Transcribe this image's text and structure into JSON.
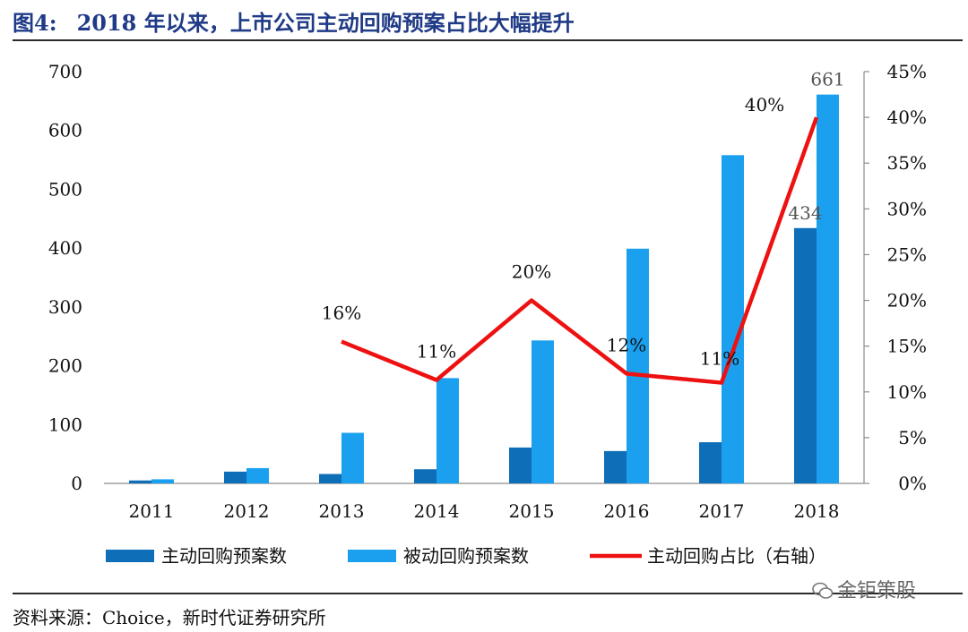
{
  "title": {
    "label": "图4:",
    "text": "2018 年以来，上市公司主动回购预案占比大幅提升"
  },
  "source": "资料来源：Choice，新时代证券研究所",
  "watermark": "金钜策股",
  "colors": {
    "active": "#0e6eb8",
    "passive": "#1aa0ef",
    "ratio": "#ee1111",
    "title": "#1f3a86"
  },
  "chart_data": {
    "type": "bar",
    "categories": [
      "2011",
      "2012",
      "2013",
      "2014",
      "2015",
      "2016",
      "2017",
      "2018"
    ],
    "series": [
      {
        "name": "主动回购预案数",
        "type": "bar",
        "axis": "left",
        "values": [
          5,
          20,
          16,
          24,
          61,
          55,
          70,
          434
        ]
      },
      {
        "name": "被动回购预案数",
        "type": "bar",
        "axis": "left",
        "values": [
          7,
          26,
          86,
          179,
          243,
          399,
          558,
          661
        ]
      },
      {
        "name": "主动回购占比（右轴）",
        "type": "line",
        "axis": "right",
        "values": [
          null,
          null,
          0.155,
          0.113,
          0.2,
          0.12,
          0.11,
          0.4
        ]
      }
    ],
    "bar_labels": [
      {
        "series": 0,
        "index": 7,
        "text": "434"
      },
      {
        "series": 1,
        "index": 7,
        "text": "661"
      }
    ],
    "line_labels": [
      {
        "index": 2,
        "text": "16%"
      },
      {
        "index": 3,
        "text": "11%"
      },
      {
        "index": 4,
        "text": "20%"
      },
      {
        "index": 5,
        "text": "12%"
      },
      {
        "index": 6,
        "text": "11%"
      },
      {
        "index": 7,
        "text": "40%"
      }
    ],
    "y_left": {
      "min": 0,
      "max": 700,
      "ticks": [
        "0",
        "100",
        "200",
        "300",
        "400",
        "500",
        "600",
        "700"
      ]
    },
    "y_right": {
      "min": 0,
      "max": 0.45,
      "ticks": [
        "0%",
        "5%",
        "10%",
        "15%",
        "20%",
        "25%",
        "30%",
        "35%",
        "40%",
        "45%"
      ]
    },
    "legend_position": "bottom",
    "grid": false
  }
}
